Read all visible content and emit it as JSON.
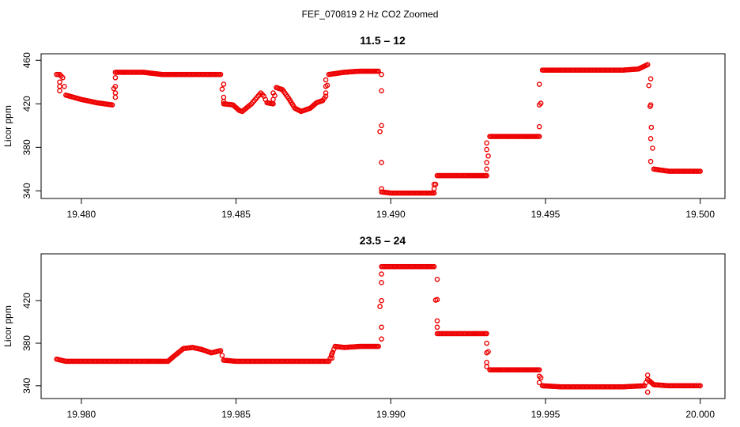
{
  "figure": {
    "suptitle": "FEF_070819  2 Hz CO2 Zoomed"
  },
  "chart_data": [
    {
      "type": "scatter",
      "title": "11.5 – 12",
      "xlabel": "",
      "ylabel": "Licor ppm",
      "xlim": [
        19.4787,
        19.5008
      ],
      "ylim": [
        333,
        466
      ],
      "xticks": [
        19.48,
        19.485,
        19.49,
        19.495,
        19.5
      ],
      "xtick_labels": [
        "19.480",
        "19.485",
        "19.490",
        "19.495",
        "19.500"
      ],
      "yticks": [
        340,
        380,
        420,
        460
      ],
      "ytick_labels": [
        "340",
        "380",
        "420",
        "460"
      ],
      "grid": false,
      "marker": "open-circle",
      "color": "#ee0000",
      "profile": [
        [
          19.4792,
          447
        ],
        [
          19.4793,
          447
        ],
        [
          19.4794,
          444
        ],
        [
          19.4795,
          428
        ],
        [
          19.48,
          424
        ],
        [
          19.4805,
          421
        ],
        [
          19.481,
          419
        ],
        [
          19.4811,
          449
        ],
        [
          19.4815,
          449
        ],
        [
          19.482,
          449
        ],
        [
          19.4826,
          447
        ],
        [
          19.483,
          447
        ],
        [
          19.484,
          447
        ],
        [
          19.4845,
          447
        ],
        [
          19.4846,
          420
        ],
        [
          19.4849,
          419
        ],
        [
          19.4851,
          414
        ],
        [
          19.4852,
          413
        ],
        [
          19.4855,
          420
        ],
        [
          19.4858,
          430
        ],
        [
          19.4859,
          427
        ],
        [
          19.486,
          421
        ],
        [
          19.4862,
          420
        ],
        [
          19.4863,
          435
        ],
        [
          19.4865,
          433
        ],
        [
          19.4867,
          425
        ],
        [
          19.4869,
          416
        ],
        [
          19.4871,
          413
        ],
        [
          19.4874,
          416
        ],
        [
          19.4876,
          421
        ],
        [
          19.4878,
          423
        ],
        [
          19.4879,
          427
        ],
        [
          19.488,
          447
        ],
        [
          19.4885,
          449
        ],
        [
          19.489,
          450
        ],
        [
          19.4896,
          450
        ],
        [
          19.4897,
          339
        ],
        [
          19.49,
          338
        ],
        [
          19.4905,
          338
        ],
        [
          19.4914,
          338
        ],
        [
          19.4915,
          354
        ],
        [
          19.492,
          354
        ],
        [
          19.4925,
          354
        ],
        [
          19.4931,
          354
        ],
        [
          19.4932,
          390
        ],
        [
          19.494,
          390
        ],
        [
          19.4948,
          390
        ],
        [
          19.4949,
          451
        ],
        [
          19.4955,
          451
        ],
        [
          19.4965,
          451
        ],
        [
          19.4975,
          451
        ],
        [
          19.498,
          452
        ],
        [
          19.4983,
          456
        ],
        [
          19.4985,
          360
        ],
        [
          19.499,
          358
        ],
        [
          19.4995,
          358
        ],
        [
          19.5,
          358
        ]
      ],
      "transitions": [
        [
          19.4793,
          [
            440,
            436,
            432
          ]
        ],
        [
          19.4811,
          [
            426,
            430,
            436,
            444
          ]
        ],
        [
          19.4846,
          [
            438,
            426,
            422
          ]
        ],
        [
          19.4862,
          [
            424,
            430
          ]
        ],
        [
          19.4879,
          [
            430,
            436,
            442
          ]
        ],
        [
          19.4897,
          [
            447,
            432,
            400,
            366,
            342
          ]
        ],
        [
          19.4914,
          [
            342,
            346
          ]
        ],
        [
          19.4931,
          [
            360,
            366,
            378,
            384
          ]
        ],
        [
          19.4948,
          [
            399,
            419,
            438
          ]
        ],
        [
          19.4984,
          [
            443,
            419,
            388,
            367
          ]
        ]
      ]
    },
    {
      "type": "scatter",
      "title": "23.5 – 24",
      "xlabel": "",
      "ylabel": "Licor ppm",
      "xlim": [
        19.9787,
        20.0008
      ],
      "ylim": [
        328,
        464
      ],
      "xticks": [
        19.98,
        19.985,
        19.99,
        19.995,
        20.0
      ],
      "xtick_labels": [
        "19.980",
        "19.985",
        "19.990",
        "19.995",
        "20.000"
      ],
      "yticks": [
        340,
        380,
        420
      ],
      "ytick_labels": [
        "340",
        "380",
        "420"
      ],
      "grid": false,
      "marker": "open-circle",
      "color": "#ee0000",
      "profile": [
        [
          19.9792,
          365
        ],
        [
          19.9795,
          363
        ],
        [
          19.98,
          363
        ],
        [
          19.981,
          363
        ],
        [
          19.982,
          363
        ],
        [
          19.9828,
          363
        ],
        [
          19.983,
          368
        ],
        [
          19.9833,
          375
        ],
        [
          19.9836,
          376
        ],
        [
          19.9839,
          374
        ],
        [
          19.9842,
          371
        ],
        [
          19.9845,
          373
        ],
        [
          19.9846,
          364
        ],
        [
          19.985,
          363
        ],
        [
          19.986,
          363
        ],
        [
          19.987,
          363
        ],
        [
          19.988,
          363
        ],
        [
          19.9882,
          377
        ],
        [
          19.9885,
          376
        ],
        [
          19.989,
          377
        ],
        [
          19.9896,
          377
        ],
        [
          19.9897,
          452
        ],
        [
          19.99,
          452
        ],
        [
          19.9905,
          452
        ],
        [
          19.9914,
          452
        ],
        [
          19.9915,
          389
        ],
        [
          19.992,
          389
        ],
        [
          19.9925,
          389
        ],
        [
          19.9931,
          389
        ],
        [
          19.9932,
          355
        ],
        [
          19.994,
          355
        ],
        [
          19.9948,
          355
        ],
        [
          19.9949,
          340
        ],
        [
          19.9955,
          339
        ],
        [
          19.9965,
          339
        ],
        [
          19.9975,
          339
        ],
        [
          19.9982,
          340
        ],
        [
          19.9983,
          346
        ],
        [
          19.9985,
          341
        ],
        [
          19.999,
          340
        ],
        [
          19.9995,
          340
        ],
        [
          20.0,
          340
        ]
      ],
      "transitions": [
        [
          19.9881,
          [
            366,
            370
          ]
        ],
        [
          19.9897,
          [
            384,
            395,
            420,
            437,
            445
          ]
        ],
        [
          19.9915,
          [
            440,
            421,
            401,
            395
          ]
        ],
        [
          19.9931,
          [
            380,
            371,
            362,
            358
          ]
        ],
        [
          19.9948,
          [
            349,
            343
          ]
        ],
        [
          19.9983,
          [
            350,
            334
          ]
        ]
      ]
    }
  ]
}
